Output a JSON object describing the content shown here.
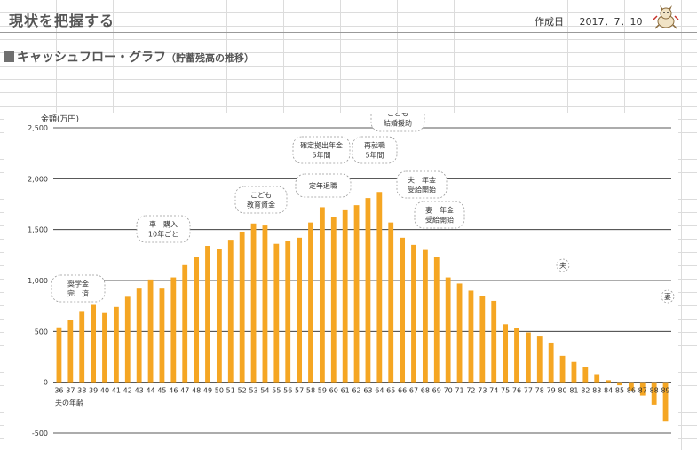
{
  "header": {
    "title": "現状を把握する",
    "created_label": "作成日",
    "created_date": "2017．7．10"
  },
  "section": {
    "title": "キャッシュフロー・グラフ",
    "subtitle": "（貯蓄残高の推移）"
  },
  "colors": {
    "bar": "#F5A623",
    "gridline": "#222222",
    "grid_bg": "#dcdcdc"
  },
  "chart_data": {
    "type": "bar",
    "ylabel": "金額(万円)",
    "xlabel": "夫の年齢",
    "ylim": [
      -500,
      2500
    ],
    "yticks": [
      -500,
      0,
      500,
      1000,
      1500,
      2000,
      2500
    ],
    "ytick_labels": [
      "-500",
      "0",
      "500",
      "1,000",
      "1,500",
      "2,000",
      "2,500"
    ],
    "grid": true,
    "categories": [
      "36",
      "37",
      "38",
      "39",
      "40",
      "41",
      "42",
      "43",
      "44",
      "45",
      "46",
      "47",
      "48",
      "49",
      "50",
      "51",
      "52",
      "53",
      "54",
      "55",
      "56",
      "57",
      "58",
      "59",
      "60",
      "61",
      "62",
      "63",
      "64",
      "65",
      "66",
      "67",
      "68",
      "69",
      "70",
      "71",
      "72",
      "73",
      "74",
      "75",
      "76",
      "77",
      "78",
      "79",
      "80",
      "81",
      "82",
      "83",
      "84",
      "85",
      "86",
      "87",
      "88",
      "89"
    ],
    "values": [
      540,
      610,
      700,
      760,
      680,
      740,
      840,
      920,
      1010,
      920,
      1030,
      1150,
      1230,
      1340,
      1310,
      1400,
      1480,
      1560,
      1540,
      1360,
      1390,
      1420,
      1570,
      1720,
      1620,
      1690,
      1740,
      1810,
      1870,
      1570,
      1420,
      1350,
      1300,
      1230,
      1030,
      970,
      900,
      850,
      800,
      570,
      530,
      490,
      450,
      390,
      260,
      200,
      150,
      80,
      20,
      -30,
      -80,
      -130,
      -220,
      -380
    ],
    "annotations": [
      {
        "text": [
          "奨学金",
          "完　済"
        ],
        "x": "37"
      },
      {
        "text": [
          "車　購入",
          "10年ごと"
        ],
        "x": "44"
      },
      {
        "text": [
          "こども",
          "教育資金"
        ],
        "x": "53"
      },
      {
        "text": [
          "確定拠出年金",
          "5年間"
        ],
        "x": "60"
      },
      {
        "text": [
          "定年退職"
        ],
        "x": "60"
      },
      {
        "text": [
          "再就職",
          "5年間"
        ],
        "x": "65"
      },
      {
        "text": [
          "こども",
          "結婚援助"
        ],
        "x": "67"
      },
      {
        "text": [
          "夫　年金",
          "受給開始"
        ],
        "x": "67"
      },
      {
        "text": [
          "妻　年金",
          "受給開始"
        ],
        "x": "69"
      },
      {
        "text": [
          "夫"
        ],
        "x": "80"
      },
      {
        "text": [
          "妻"
        ],
        "x": "89"
      }
    ]
  }
}
